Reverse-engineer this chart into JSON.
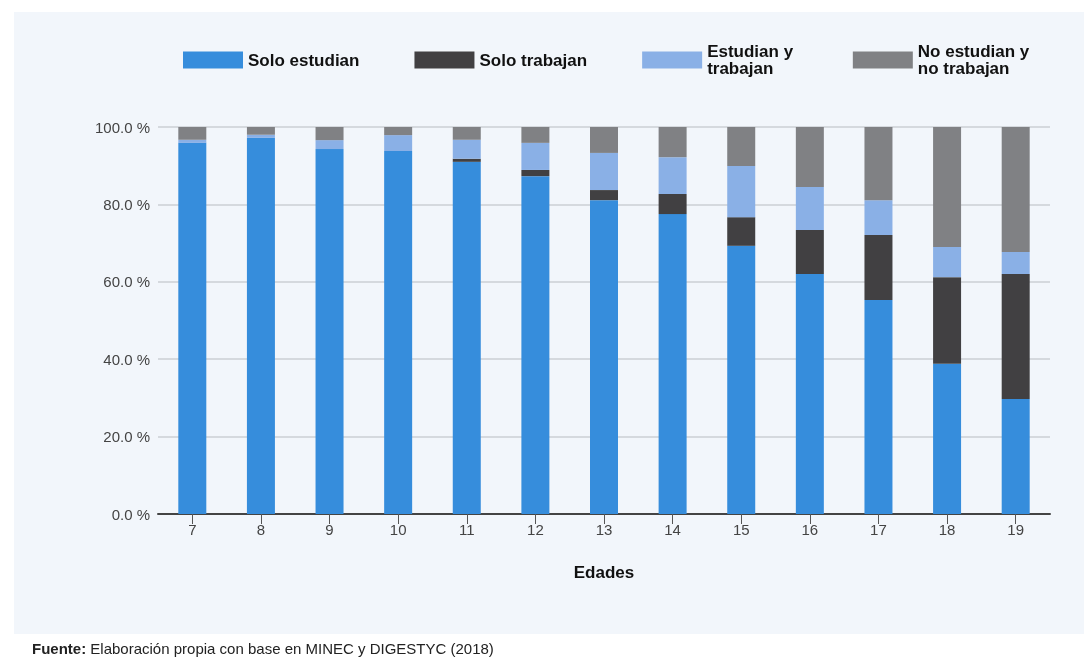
{
  "chart_data": {
    "type": "bar",
    "stacked": true,
    "xlabel": "Edades",
    "categories": [
      "7",
      "8",
      "9",
      "10",
      "11",
      "12",
      "13",
      "14",
      "15",
      "16",
      "17",
      "18",
      "19"
    ],
    "series": [
      {
        "name": "Solo estudian",
        "color": "#368ddc",
        "values": [
          95.9,
          97.2,
          94.3,
          93.8,
          91.0,
          87.3,
          81.1,
          77.5,
          69.3,
          62.0,
          55.3,
          38.8,
          29.7
        ]
      },
      {
        "name": "Solo trabajan",
        "color": "#414042",
        "values": [
          0,
          0,
          0,
          0,
          0.8,
          1.6,
          2.6,
          5.2,
          7.4,
          11.4,
          16.8,
          22.4,
          32.3
        ]
      },
      {
        "name": "Estudian y trabajan",
        "color": "#8ab0e6",
        "values": [
          0.8,
          0.8,
          2.3,
          4.1,
          4.9,
          7.0,
          9.6,
          9.5,
          13.2,
          11.1,
          9.0,
          7.8,
          5.7
        ]
      },
      {
        "name": "No estudian y no trabajan",
        "color": "#808184",
        "values": [
          3.3,
          2.0,
          3.4,
          2.1,
          3.3,
          4.1,
          6.7,
          7.8,
          10.1,
          15.5,
          18.9,
          31.0,
          32.3
        ]
      }
    ],
    "ylim": [
      0,
      100
    ],
    "yticks": [
      {
        "value": 0,
        "label": "0.0 %"
      },
      {
        "value": 20,
        "label": "20.0 %"
      },
      {
        "value": 40,
        "label": "40.0 %"
      },
      {
        "value": 60,
        "label": "60.0 %"
      },
      {
        "value": 80,
        "label": "80.0 %"
      },
      {
        "value": 100,
        "label": "100.0 %"
      }
    ],
    "grid": "y",
    "legend": "top",
    "annotations": [
      "Fuente: Elaboración propia con base en MINEC y DIGESTYC (2018)"
    ]
  }
}
